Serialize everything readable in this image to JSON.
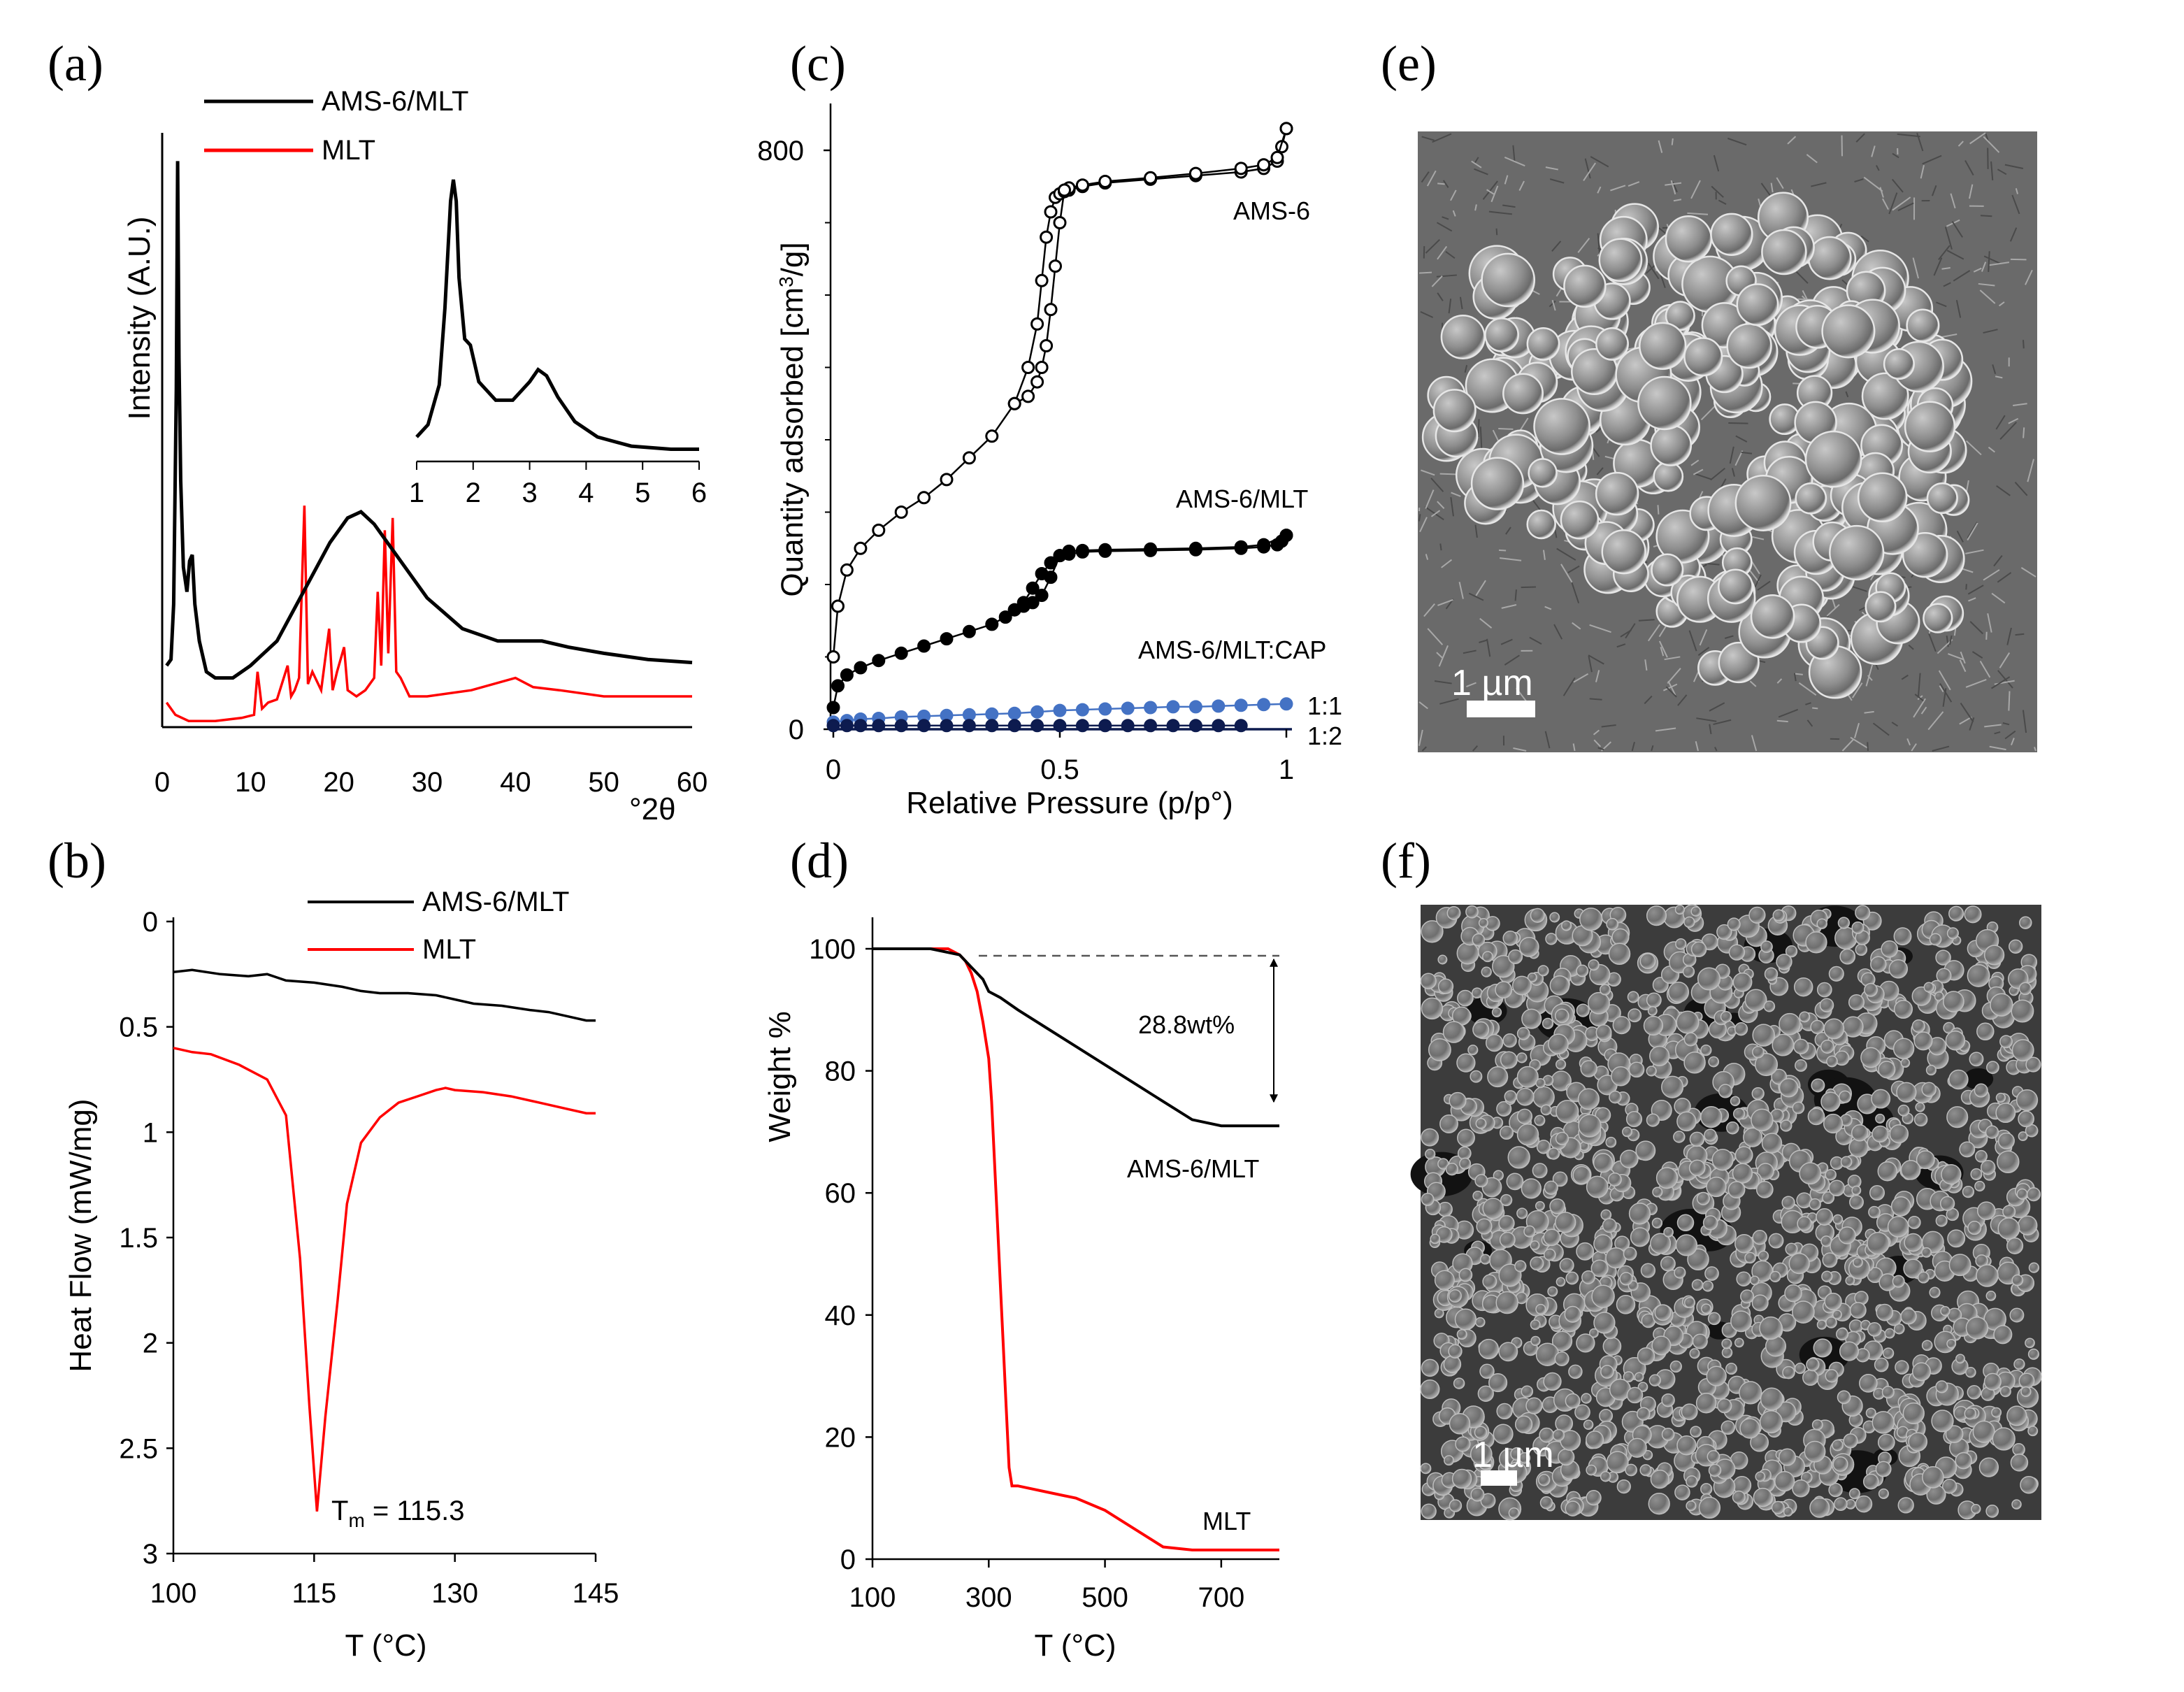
{
  "panel_labels": {
    "a": "(a)",
    "b": "(b)",
    "c": "(c)",
    "d": "(d)",
    "e": "(e)",
    "f": "(f)"
  },
  "colors": {
    "ams6_mlt": "#000000",
    "mlt": "#ff0000",
    "open": "#000000",
    "blue_1_1": "#4472c4",
    "navy_1_2": "#0d1b4f",
    "dashed": "#555555"
  },
  "chart_data": [
    {
      "panel": "a",
      "type": "line",
      "title": "",
      "xlabel": "°2θ",
      "ylabel": "Intensity (A.U.)",
      "xlim": [
        0,
        60
      ],
      "xticks": [
        0,
        10,
        20,
        30,
        40,
        50,
        60
      ],
      "ylim": [
        0,
        100
      ],
      "legend": [
        "AMS-6/MLT",
        "MLT"
      ],
      "series": [
        {
          "name": "AMS-6/MLT",
          "color": "#000000",
          "x": [
            0.5,
            1.0,
            1.3,
            1.6,
            1.75,
            1.9,
            2.1,
            2.4,
            2.8,
            3.1,
            3.4,
            3.7,
            4.2,
            5,
            6,
            8,
            10,
            13,
            16,
            19,
            21,
            22.5,
            24,
            27,
            30,
            34,
            38,
            40,
            43,
            46,
            50,
            55,
            60
          ],
          "y": [
            10,
            11,
            20,
            55,
            92,
            60,
            40,
            26,
            22,
            27,
            28,
            20,
            14,
            9,
            8,
            8,
            10,
            14,
            22,
            30,
            34,
            35,
            33,
            27,
            21,
            16,
            14,
            14,
            14,
            13,
            12,
            11,
            10.5
          ]
        },
        {
          "name": "MLT",
          "color": "#ff0000",
          "x": [
            0.5,
            1.5,
            3,
            6,
            9,
            10.4,
            10.8,
            11.3,
            12,
            13,
            14.2,
            14.6,
            15,
            15.5,
            16.1,
            16.5,
            17,
            18,
            18.9,
            19.3,
            19.8,
            20.6,
            21,
            22,
            23,
            24,
            24.4,
            24.8,
            25.2,
            25.6,
            26.1,
            26.5,
            27,
            28,
            30,
            35,
            40,
            42,
            45,
            50,
            55,
            60
          ],
          "y": [
            4,
            2,
            1,
            1,
            1.5,
            2,
            9,
            3,
            4,
            4.5,
            10,
            5,
            6,
            8,
            36,
            7,
            9,
            6,
            16,
            6,
            9,
            13,
            6,
            5,
            6,
            8,
            22,
            10,
            32,
            12,
            34,
            9,
            8,
            5,
            5,
            6,
            8,
            6.5,
            6,
            5,
            5,
            5
          ]
        }
      ],
      "inset": {
        "xlim": [
          1,
          6
        ],
        "xticks": [
          1,
          2,
          3,
          4,
          5,
          6
        ],
        "series": {
          "name": "AMS-6/MLT",
          "color": "#000000",
          "x": [
            1,
            1.2,
            1.4,
            1.5,
            1.6,
            1.65,
            1.7,
            1.75,
            1.85,
            1.95,
            2.1,
            2.4,
            2.7,
            3.0,
            3.15,
            3.3,
            3.5,
            3.8,
            4.2,
            4.8,
            5.5,
            6
          ],
          "y": [
            8,
            12,
            25,
            50,
            85,
            92,
            85,
            60,
            40,
            38,
            26,
            20,
            20,
            26,
            30,
            28,
            21,
            13,
            8,
            5,
            4,
            4
          ]
        }
      }
    },
    {
      "panel": "b",
      "type": "line",
      "title": "",
      "xlabel": "T (°C)",
      "ylabel": "Heat Flow (mW/mg)",
      "xlim": [
        100,
        145
      ],
      "xticks": [
        "100",
        "115",
        "130",
        "145"
      ],
      "ylim": [
        0,
        3
      ],
      "yticks": [
        "0",
        "0.5",
        "1",
        "1.5",
        "2",
        "2.5",
        "3"
      ],
      "y_inverted": true,
      "legend": [
        "AMS-6/MLT",
        "MLT"
      ],
      "annotation": {
        "text_main": "T",
        "text_sub": "m",
        "text_tail": " = 115.3",
        "x": 115.3,
        "y": 2.8
      },
      "series": [
        {
          "name": "AMS-6/MLT",
          "color": "#000000",
          "x": [
            100,
            102,
            105,
            108,
            110,
            112,
            115,
            118,
            120,
            122,
            125,
            128,
            130,
            132,
            135,
            138,
            140,
            142,
            144,
            145
          ],
          "y": [
            0.24,
            0.23,
            0.25,
            0.26,
            0.25,
            0.28,
            0.29,
            0.31,
            0.33,
            0.34,
            0.34,
            0.35,
            0.37,
            0.39,
            0.4,
            0.42,
            0.43,
            0.45,
            0.47,
            0.47
          ]
        },
        {
          "name": "MLT",
          "color": "#ff0000",
          "x": [
            100,
            102,
            104,
            107,
            110,
            112,
            113.5,
            114.5,
            115.3,
            116.2,
            117.5,
            118.5,
            120,
            122,
            124,
            126,
            128,
            129,
            130,
            133,
            136,
            139,
            142,
            144,
            145
          ],
          "y": [
            0.6,
            0.62,
            0.63,
            0.68,
            0.75,
            0.92,
            1.6,
            2.3,
            2.8,
            2.35,
            1.8,
            1.34,
            1.05,
            0.93,
            0.86,
            0.83,
            0.8,
            0.79,
            0.8,
            0.81,
            0.83,
            0.86,
            0.89,
            0.91,
            0.91
          ]
        }
      ]
    },
    {
      "panel": "c",
      "type": "scatter",
      "title": "",
      "xlabel": "Relative Pressure (p/p°)",
      "ylabel": "Quantity adsorbed [cm³/g]",
      "ylabel_main": "Quantity adsorbed [cm",
      "ylabel_sup": "3",
      "ylabel_tail": "/g]",
      "xlim": [
        0,
        1
      ],
      "xticks": [
        "0",
        "0.5",
        "1"
      ],
      "ylim": [
        0,
        800
      ],
      "yticks": [
        "0",
        "800"
      ],
      "series_labels": {
        "ams6": "AMS-6",
        "ams6mlt": "AMS-6/MLT",
        "cap": "AMS-6/MLT:CAP",
        "r11": "1:1",
        "r12": "1:2"
      },
      "series": [
        {
          "name": "AMS-6 adsorption",
          "style": "open",
          "color": "#000000",
          "x": [
            0,
            0.01,
            0.03,
            0.06,
            0.1,
            0.15,
            0.2,
            0.25,
            0.3,
            0.35,
            0.4,
            0.43,
            0.45,
            0.46,
            0.47,
            0.48,
            0.49,
            0.5,
            0.51,
            0.52,
            0.55,
            0.6,
            0.7,
            0.8,
            0.9,
            0.95,
            0.98,
            0.99,
            1.0
          ],
          "y": [
            100,
            170,
            220,
            250,
            275,
            300,
            320,
            345,
            375,
            405,
            450,
            500,
            560,
            620,
            680,
            715,
            735,
            740,
            743,
            745,
            750,
            755,
            760,
            765,
            770,
            775,
            785,
            805,
            830
          ]
        },
        {
          "name": "AMS-6 desorption",
          "style": "open",
          "color": "#000000",
          "x": [
            1.0,
            0.98,
            0.95,
            0.9,
            0.8,
            0.7,
            0.6,
            0.55,
            0.52,
            0.51,
            0.5,
            0.49,
            0.48,
            0.47,
            0.46,
            0.45,
            0.43,
            0.4
          ],
          "y": [
            830,
            790,
            780,
            775,
            768,
            762,
            757,
            752,
            748,
            745,
            700,
            640,
            580,
            530,
            500,
            480,
            460,
            450
          ]
        },
        {
          "name": "AMS-6/MLT adsorption",
          "style": "filled",
          "color": "#000000",
          "x": [
            0,
            0.01,
            0.03,
            0.06,
            0.1,
            0.15,
            0.2,
            0.25,
            0.3,
            0.35,
            0.38,
            0.4,
            0.42,
            0.44,
            0.46,
            0.48,
            0.5,
            0.52,
            0.55,
            0.6,
            0.7,
            0.8,
            0.9,
            0.95,
            0.98,
            0.99,
            1.0
          ],
          "y": [
            30,
            60,
            75,
            85,
            95,
            105,
            115,
            125,
            135,
            145,
            155,
            165,
            175,
            195,
            215,
            230,
            240,
            242,
            245,
            246,
            247,
            248,
            250,
            252,
            255,
            260,
            268
          ]
        },
        {
          "name": "AMS-6/MLT desorption",
          "style": "filled",
          "color": "#000000",
          "x": [
            1.0,
            0.95,
            0.9,
            0.8,
            0.7,
            0.6,
            0.55,
            0.52,
            0.5,
            0.48,
            0.46,
            0.44,
            0.42,
            0.4
          ],
          "y": [
            268,
            255,
            252,
            250,
            249,
            248,
            247,
            246,
            240,
            210,
            185,
            175,
            170,
            165
          ]
        },
        {
          "name": "AMS-6/MLT:CAP 1:1",
          "style": "filled",
          "color": "#4472c4",
          "x": [
            0,
            0.03,
            0.06,
            0.1,
            0.15,
            0.2,
            0.25,
            0.3,
            0.35,
            0.4,
            0.45,
            0.5,
            0.55,
            0.6,
            0.65,
            0.7,
            0.75,
            0.8,
            0.85,
            0.9,
            0.95,
            1.0
          ],
          "y": [
            10,
            12,
            14,
            15,
            17,
            18,
            19,
            20,
            21,
            22,
            24,
            26,
            27,
            28,
            29,
            30,
            31,
            31,
            32,
            33,
            34,
            35
          ]
        },
        {
          "name": "AMS-6/MLT:CAP 1:2",
          "style": "filled",
          "color": "#0d1b4f",
          "x": [
            0,
            0.03,
            0.06,
            0.1,
            0.15,
            0.2,
            0.25,
            0.3,
            0.35,
            0.4,
            0.45,
            0.5,
            0.55,
            0.6,
            0.65,
            0.7,
            0.75,
            0.8,
            0.85,
            0.9
          ],
          "y": [
            5,
            5,
            5,
            5,
            5,
            5,
            5,
            5,
            5,
            5,
            5,
            5,
            5,
            5,
            5,
            5,
            5,
            5,
            5,
            5
          ]
        }
      ]
    },
    {
      "panel": "d",
      "type": "line",
      "title": "",
      "xlabel": "T (°C)",
      "ylabel": "Weight %",
      "xlim": [
        100,
        800
      ],
      "xticks": [
        "100",
        "300",
        "500",
        "700"
      ],
      "ylim": [
        0,
        100
      ],
      "yticks": [
        "0",
        "20",
        "40",
        "60",
        "80",
        "100"
      ],
      "loss_annotation": "28.8wt%",
      "series_labels": {
        "ams6mlt": "AMS-6/MLT",
        "mlt": "MLT"
      },
      "series": [
        {
          "name": "AMS-6/MLT",
          "color": "#000000",
          "x": [
            100,
            200,
            250,
            270,
            290,
            300,
            320,
            350,
            400,
            450,
            500,
            550,
            600,
            650,
            700,
            750,
            780,
            800
          ],
          "y": [
            100,
            100,
            99,
            97,
            95,
            93,
            92,
            90,
            87,
            84,
            81,
            78,
            75,
            72,
            71,
            71,
            71,
            71
          ]
        },
        {
          "name": "MLT",
          "color": "#ff0000",
          "x": [
            100,
            200,
            230,
            250,
            260,
            270,
            280,
            290,
            300,
            305,
            310,
            315,
            320,
            325,
            330,
            335,
            340,
            350,
            400,
            450,
            500,
            550,
            600,
            650,
            700,
            750,
            800
          ],
          "y": [
            100,
            100,
            100,
            99,
            98,
            96,
            93,
            88,
            82,
            75,
            65,
            55,
            45,
            35,
            25,
            15,
            12,
            12,
            11,
            10,
            8,
            5,
            2,
            1.5,
            1.5,
            1.5,
            1.5
          ]
        }
      ]
    }
  ],
  "micrographs": {
    "e": {
      "scale_label": "1 µm"
    },
    "f": {
      "scale_label": "1 µm"
    }
  }
}
